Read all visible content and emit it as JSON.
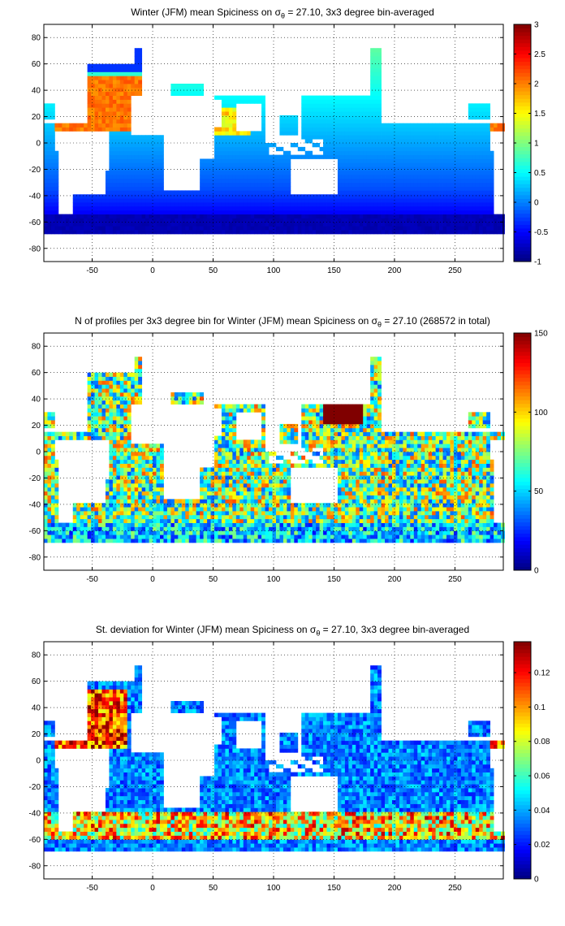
{
  "chart_data": [
    {
      "type": "heatmap",
      "title_pre": "Winter (JFM) mean Spiciness on σ",
      "title_sub": "θ",
      "title_post": " = 27.10, 3x3 degree bin-averaged",
      "xticks": [
        -50,
        0,
        50,
        100,
        150,
        200,
        250
      ],
      "yticks": [
        80,
        60,
        40,
        20,
        0,
        -20,
        -40,
        -60,
        -80
      ],
      "xlim": [
        -90,
        290
      ],
      "ylim": [
        -90,
        90
      ],
      "grid": true,
      "colorbar": {
        "min": -1,
        "max": 3,
        "ticks": [
          3,
          2.5,
          2,
          1.5,
          1,
          0.5,
          0,
          -0.5,
          -1
        ]
      },
      "colormap": "jet"
    },
    {
      "type": "heatmap",
      "title_pre": "N of profiles per 3x3 degree bin for Winter (JFM) mean Spiciness on σ",
      "title_sub": "θ",
      "title_post": " = 27.10 (268572 in total)",
      "xticks": [
        -50,
        0,
        50,
        100,
        150,
        200,
        250
      ],
      "yticks": [
        80,
        60,
        40,
        20,
        0,
        -20,
        -40,
        -60,
        -80
      ],
      "xlim": [
        -90,
        290
      ],
      "ylim": [
        -90,
        90
      ],
      "grid": true,
      "colorbar": {
        "min": 0,
        "max": 150,
        "ticks": [
          150,
          100,
          50,
          0
        ]
      },
      "colormap": "jet"
    },
    {
      "type": "heatmap",
      "title_pre": "St. deviation for Winter (JFM) mean Spiciness on σ",
      "title_sub": "θ",
      "title_post": " = 27.10, 3x3 degree bin-averaged",
      "xticks": [
        -50,
        0,
        50,
        100,
        150,
        200,
        250
      ],
      "yticks": [
        80,
        60,
        40,
        20,
        0,
        -20,
        -40,
        -60,
        -80
      ],
      "xlim": [
        -90,
        290
      ],
      "ylim": [
        -90,
        90
      ],
      "grid": true,
      "colorbar": {
        "min": 0,
        "max": 0.138,
        "ticks": [
          0.12,
          0.1,
          0.08,
          0.06,
          0.04,
          0.02,
          0
        ]
      },
      "colormap": "jet"
    }
  ]
}
